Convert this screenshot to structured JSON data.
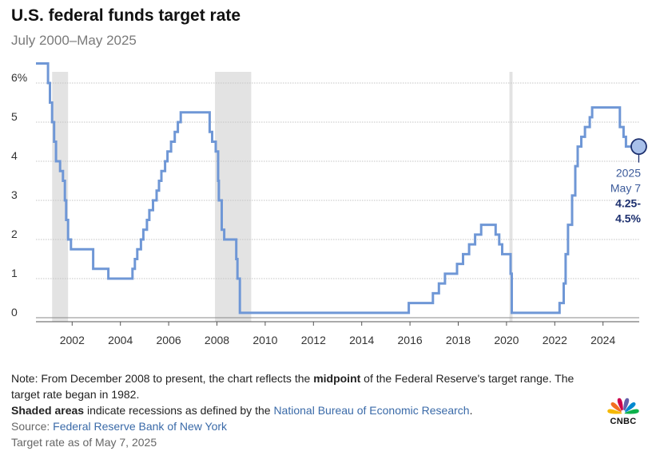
{
  "header": {
    "title": "U.S. federal funds target rate",
    "subtitle": "July 2000–May 2025"
  },
  "chart_data": {
    "type": "line",
    "title": "U.S. federal funds target rate",
    "subtitle": "July 2000–May 2025",
    "xlabel": "",
    "ylabel": "",
    "xlim": [
      2000.5,
      2025.5
    ],
    "ylim": [
      0,
      6.5
    ],
    "x_ticks": [
      2002,
      2004,
      2006,
      2008,
      2010,
      2012,
      2014,
      2016,
      2018,
      2020,
      2022,
      2024
    ],
    "x_tick_labels": [
      "2002",
      "2004",
      "2006",
      "2008",
      "2010",
      "2012",
      "2014",
      "2016",
      "2018",
      "2020",
      "2022",
      "2024"
    ],
    "y_ticks": [
      0,
      1,
      2,
      3,
      4,
      5,
      6
    ],
    "y_tick_labels": [
      "0",
      "1",
      "2",
      "3",
      "4",
      "5",
      "6%"
    ],
    "grid": true,
    "series_color": "#6f97d6",
    "recession_color": "#e3e3e3",
    "marker_color": "#1c2f6e",
    "recessions": [
      [
        2001.17,
        2001.83
      ],
      [
        2007.92,
        2009.42
      ],
      [
        2020.12,
        2020.25
      ]
    ],
    "series": [
      {
        "name": "Federal funds target rate",
        "points": [
          [
            2000.5,
            6.5
          ],
          [
            2001.0,
            6.0
          ],
          [
            2001.08,
            5.5
          ],
          [
            2001.17,
            5.0
          ],
          [
            2001.25,
            4.5
          ],
          [
            2001.33,
            4.0
          ],
          [
            2001.5,
            3.75
          ],
          [
            2001.62,
            3.5
          ],
          [
            2001.7,
            3.0
          ],
          [
            2001.75,
            2.5
          ],
          [
            2001.83,
            2.0
          ],
          [
            2001.95,
            1.75
          ],
          [
            2002.87,
            1.25
          ],
          [
            2003.5,
            1.0
          ],
          [
            2004.5,
            1.25
          ],
          [
            2004.6,
            1.5
          ],
          [
            2004.7,
            1.75
          ],
          [
            2004.85,
            2.0
          ],
          [
            2004.95,
            2.25
          ],
          [
            2005.1,
            2.5
          ],
          [
            2005.2,
            2.75
          ],
          [
            2005.35,
            3.0
          ],
          [
            2005.5,
            3.25
          ],
          [
            2005.6,
            3.5
          ],
          [
            2005.7,
            3.75
          ],
          [
            2005.85,
            4.0
          ],
          [
            2005.95,
            4.25
          ],
          [
            2006.1,
            4.5
          ],
          [
            2006.25,
            4.75
          ],
          [
            2006.38,
            5.0
          ],
          [
            2006.5,
            5.25
          ],
          [
            2007.7,
            4.75
          ],
          [
            2007.8,
            4.5
          ],
          [
            2007.95,
            4.25
          ],
          [
            2008.05,
            3.5
          ],
          [
            2008.08,
            3.0
          ],
          [
            2008.2,
            2.25
          ],
          [
            2008.3,
            2.0
          ],
          [
            2008.8,
            1.5
          ],
          [
            2008.85,
            1.0
          ],
          [
            2008.95,
            0.125
          ],
          [
            2015.95,
            0.375
          ],
          [
            2016.95,
            0.625
          ],
          [
            2017.2,
            0.875
          ],
          [
            2017.45,
            1.125
          ],
          [
            2017.95,
            1.375
          ],
          [
            2018.2,
            1.625
          ],
          [
            2018.45,
            1.875
          ],
          [
            2018.7,
            2.125
          ],
          [
            2018.95,
            2.375
          ],
          [
            2019.55,
            2.125
          ],
          [
            2019.7,
            1.875
          ],
          [
            2019.82,
            1.625
          ],
          [
            2020.17,
            1.125
          ],
          [
            2020.22,
            0.125
          ],
          [
            2022.2,
            0.375
          ],
          [
            2022.37,
            0.875
          ],
          [
            2022.45,
            1.625
          ],
          [
            2022.55,
            2.375
          ],
          [
            2022.72,
            3.125
          ],
          [
            2022.85,
            3.875
          ],
          [
            2022.95,
            4.375
          ],
          [
            2023.1,
            4.625
          ],
          [
            2023.25,
            4.875
          ],
          [
            2023.45,
            5.125
          ],
          [
            2023.55,
            5.375
          ],
          [
            2024.7,
            4.875
          ],
          [
            2024.85,
            4.625
          ],
          [
            2024.95,
            4.375
          ],
          [
            2025.35,
            4.375
          ]
        ]
      }
    ],
    "annotation": {
      "year": "2025",
      "date": "May 7",
      "value_line1": "4.25-",
      "value_line2": "4.5%"
    }
  },
  "notes": {
    "line1_prefix": "Note: From December 2008 to present, the chart reflects the ",
    "line1_bold": "midpoint",
    "line1_suffix": " of the Federal Reserve's target range. The target rate began in 1982.",
    "line2_bold": "Shaded areas",
    "line2_text": " indicate recessions as defined by the ",
    "line2_link": "National Bureau of Economic Research",
    "line2_end": ".",
    "source_label": "Source: ",
    "source_link": "Federal Reserve Bank of New York",
    "asof": "Target rate as of May 7, 2025"
  },
  "logo": {
    "text": "CNBC",
    "colors": [
      "#f5b800",
      "#f37021",
      "#cc004c",
      "#6460aa",
      "#0089d0",
      "#0db14b"
    ]
  }
}
